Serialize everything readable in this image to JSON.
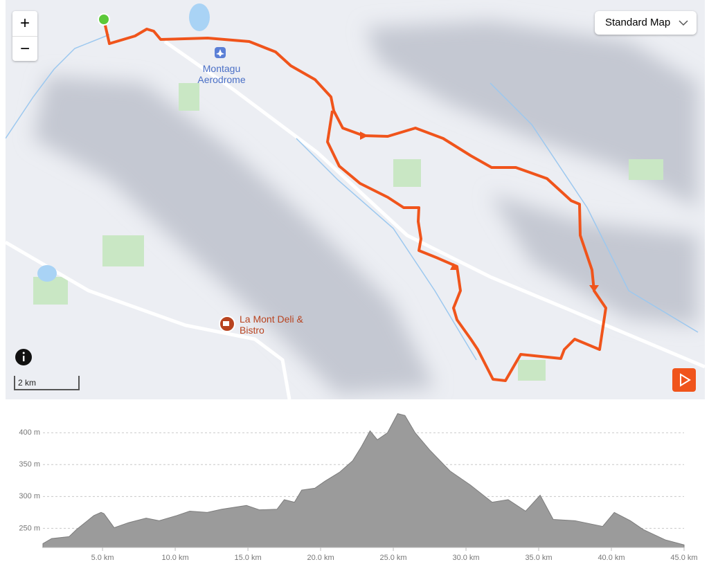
{
  "map": {
    "zoom_in": "+",
    "zoom_out": "−",
    "map_style": "Standard Map",
    "labels": [
      "Montagu Aerodrome",
      "La Mont Deli & Bistro"
    ],
    "scale": "2 km"
  },
  "chart_data": {
    "type": "area",
    "color": "#9b9b9b",
    "line_color": "#7c7c7c",
    "grid": true,
    "x": [
      0.9,
      1.5,
      2.7,
      3.2,
      4.4,
      4.9,
      5.1,
      5.8,
      6.8,
      8.0,
      8.9,
      10.1,
      11.0,
      12.2,
      13.2,
      14.9,
      15.8,
      17.0,
      17.5,
      18.2,
      18.7,
      19.6,
      20.3,
      21.3,
      22.2,
      22.8,
      23.4,
      23.9,
      24.6,
      25.3,
      25.8,
      26.5,
      27.5,
      28.9,
      30.3,
      31.8,
      32.9,
      34.1,
      35.1,
      36.0,
      37.5,
      39.4,
      40.2,
      41.3,
      42.2,
      43.7,
      45.0
    ],
    "values": [
      226,
      234,
      237,
      248,
      270,
      275,
      273,
      251,
      259,
      266,
      262,
      270,
      277,
      275,
      280,
      286,
      279,
      280,
      295,
      291,
      310,
      313,
      324,
      338,
      356,
      378,
      403,
      389,
      400,
      430,
      427,
      400,
      373,
      340,
      318,
      291,
      295,
      277,
      302,
      264,
      262,
      253,
      275,
      262,
      248,
      232,
      224
    ],
    "xlim": [
      0.9,
      45.0
    ],
    "ylim": [
      220,
      435
    ],
    "xticks": [
      {
        "value": 5,
        "label": "5.0 km"
      },
      {
        "value": 10,
        "label": "10.0 km"
      },
      {
        "value": 15,
        "label": "15.0 km"
      },
      {
        "value": 20,
        "label": "20.0 km"
      },
      {
        "value": 25,
        "label": "25.0 km"
      },
      {
        "value": 30,
        "label": "30.0 km"
      },
      {
        "value": 35,
        "label": "35.0 km"
      },
      {
        "value": 40,
        "label": "40.0 km"
      },
      {
        "value": 45,
        "label": "45.0 km"
      }
    ],
    "yticks": [
      {
        "value": 250,
        "label": "250 m"
      },
      {
        "value": 300,
        "label": "300 m"
      },
      {
        "value": 350,
        "label": "350 m"
      },
      {
        "value": 400,
        "label": "400 m"
      }
    ]
  }
}
